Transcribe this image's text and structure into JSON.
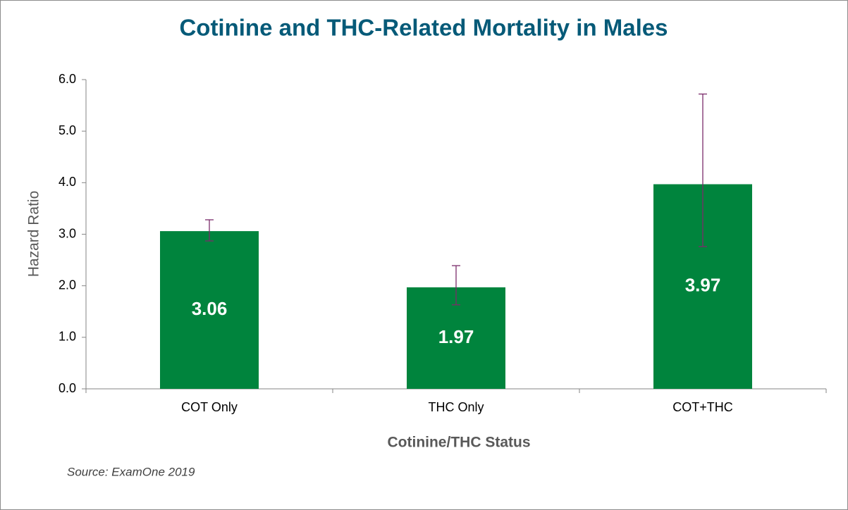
{
  "chart_data": {
    "type": "bar",
    "title": "Cotinine and THC-Related Mortality in Males",
    "ylabel": "Hazard Ratio",
    "xlabel": "Cotinine/THC Status",
    "source": "Source: ExamOne 2019",
    "categories": [
      "COT Only",
      "THC Only",
      "COT+THC"
    ],
    "values": [
      3.06,
      1.97,
      3.97
    ],
    "ci_low": [
      2.87,
      1.63,
      2.76
    ],
    "ci_high": [
      3.28,
      2.39,
      5.72
    ],
    "color": "#00843d",
    "error_color": "#7b2c6b",
    "ylim": [
      0,
      6
    ],
    "yticks": [
      {
        "value": 0,
        "label": "0.0"
      },
      {
        "value": 1,
        "label": "1.0"
      },
      {
        "value": 2,
        "label": "2.0"
      },
      {
        "value": 3,
        "label": "3.0"
      },
      {
        "value": 4,
        "label": "4.0"
      },
      {
        "value": 5,
        "label": "5.0"
      },
      {
        "value": 6,
        "label": "6.0"
      }
    ],
    "grid": false
  }
}
